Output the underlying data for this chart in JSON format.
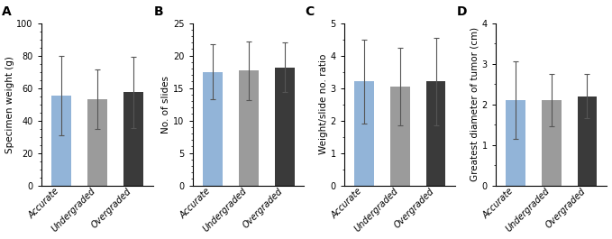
{
  "panels": [
    {
      "label": "A",
      "ylabel": "Specimen weight (g)",
      "ylim": [
        0,
        100
      ],
      "yticks": [
        0,
        20,
        40,
        60,
        80,
        100
      ],
      "ytick_minor": 4,
      "bars": [
        55.5,
        53.0,
        57.5
      ],
      "errors": [
        24.5,
        18.5,
        22.0
      ]
    },
    {
      "label": "B",
      "ylabel": "No. of slides",
      "ylim": [
        0,
        25
      ],
      "yticks": [
        0,
        5,
        10,
        15,
        20,
        25
      ],
      "ytick_minor": 5,
      "bars": [
        17.5,
        17.7,
        18.2
      ],
      "errors": [
        4.2,
        4.5,
        3.8
      ]
    },
    {
      "label": "C",
      "ylabel": "Weight/slide no. ratio",
      "ylim": [
        0,
        5
      ],
      "yticks": [
        0,
        1,
        2,
        3,
        4,
        5
      ],
      "ytick_minor": 2,
      "bars": [
        3.2,
        3.05,
        3.2
      ],
      "errors": [
        1.3,
        1.2,
        1.35
      ]
    },
    {
      "label": "D",
      "ylabel": "Greatest diameter of tumor (cm)",
      "ylim": [
        0,
        4
      ],
      "yticks": [
        0,
        1,
        2,
        3,
        4
      ],
      "ytick_minor": 2,
      "bars": [
        2.1,
        2.1,
        2.2
      ],
      "errors": [
        0.95,
        0.65,
        0.55
      ]
    }
  ],
  "categories": [
    "Accurate",
    "Undergraded",
    "Overgraded"
  ],
  "bar_colors": [
    "#92b4d8",
    "#9b9b9b",
    "#3a3a3a"
  ],
  "bar_width": 0.55,
  "error_color": "#555555",
  "background_color": "#ffffff",
  "tick_fontsize": 7.0,
  "ylabel_fontsize": 7.5,
  "panel_label_fontsize": 10,
  "xlabel_fontsize": 7.0
}
